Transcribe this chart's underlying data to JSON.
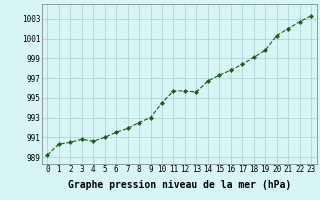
{
  "x": [
    0,
    1,
    2,
    3,
    4,
    5,
    6,
    7,
    8,
    9,
    10,
    11,
    12,
    13,
    14,
    15,
    16,
    17,
    18,
    19,
    20,
    21,
    22,
    23
  ],
  "y": [
    989.2,
    990.3,
    990.5,
    990.8,
    990.6,
    991.0,
    991.5,
    991.9,
    992.5,
    993.0,
    994.5,
    995.7,
    995.7,
    995.6,
    996.7,
    997.3,
    997.8,
    998.4,
    999.1,
    999.8,
    1001.3,
    1002.0,
    1002.7,
    1003.3
  ],
  "line_color": "#1a5c1a",
  "marker": "D",
  "marker_size": 2.2,
  "bg_color": "#d8f5f5",
  "grid_color": "#aacece",
  "xlabel": "Graphe pression niveau de la mer (hPa)",
  "xlabel_fontsize": 7.0,
  "ylabel_ticks": [
    989,
    991,
    993,
    995,
    997,
    999,
    1001,
    1003
  ],
  "xlim": [
    -0.5,
    23.5
  ],
  "ylim": [
    988.3,
    1004.5
  ],
  "xtick_labels": [
    "0",
    "1",
    "2",
    "3",
    "4",
    "5",
    "6",
    "7",
    "8",
    "9",
    "10",
    "11",
    "12",
    "13",
    "14",
    "15",
    "16",
    "17",
    "18",
    "19",
    "20",
    "21",
    "22",
    "23"
  ],
  "tick_fontsize": 5.5
}
